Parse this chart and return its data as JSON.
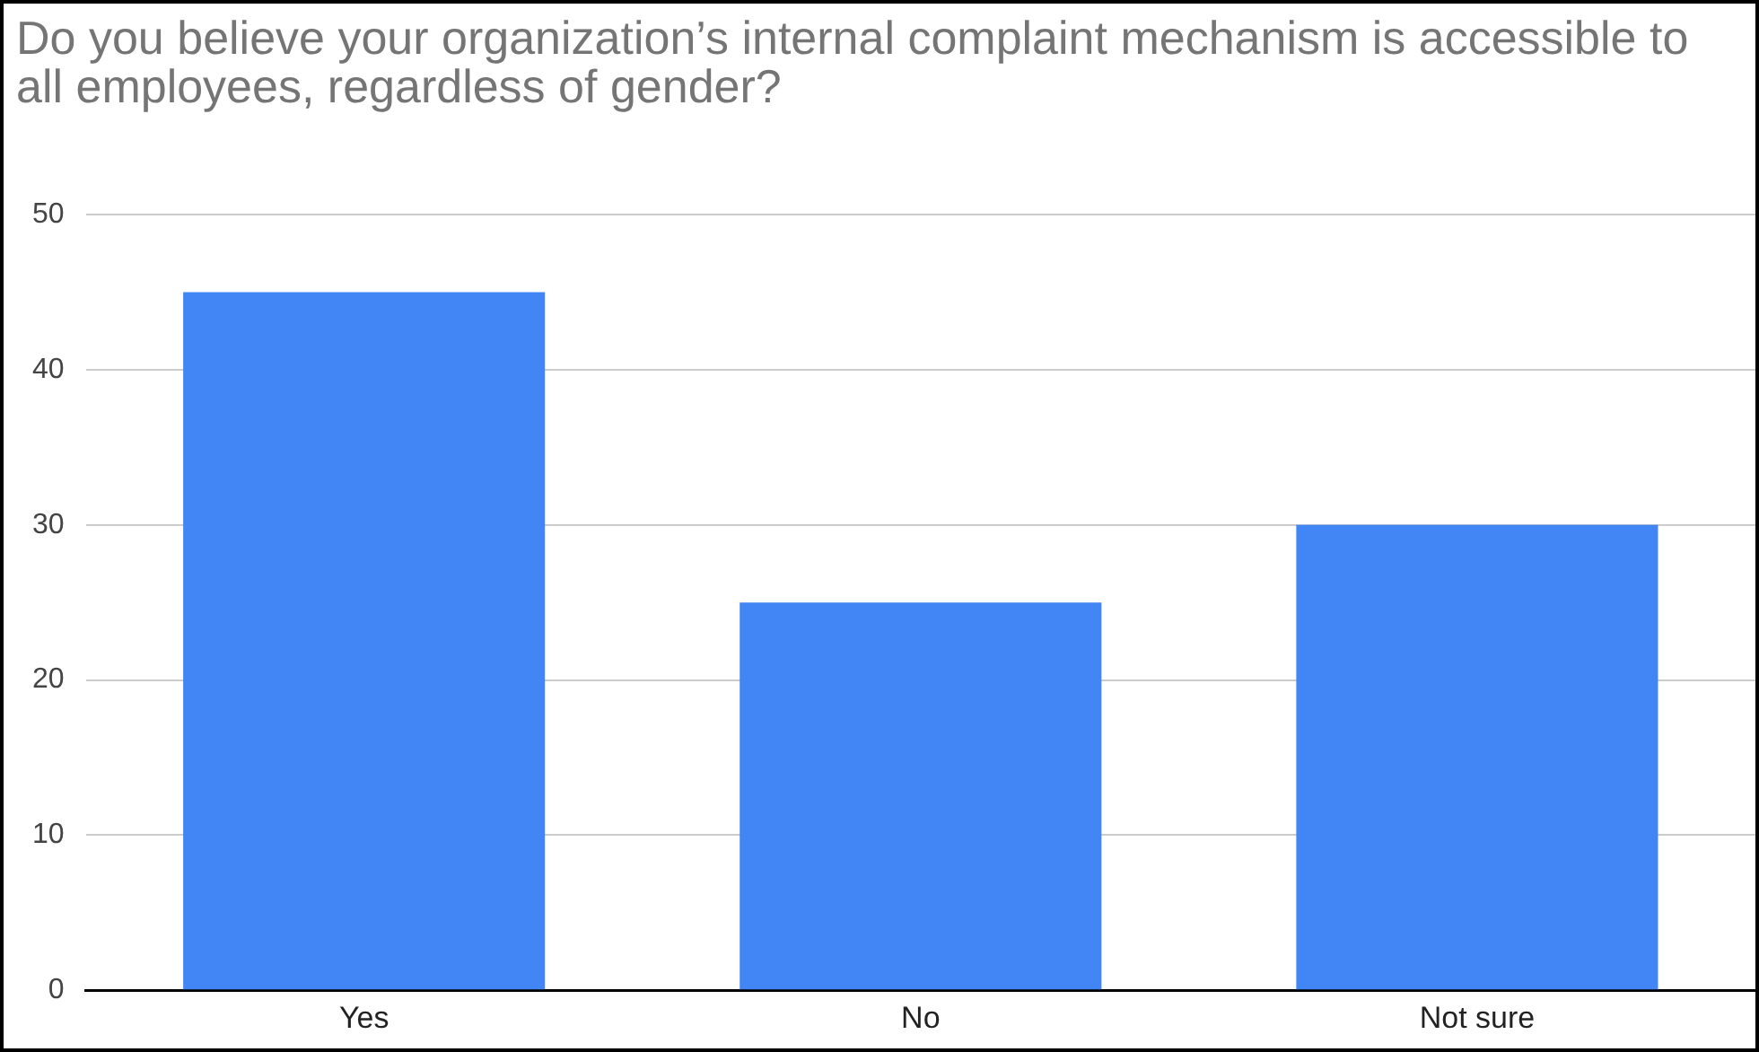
{
  "chart_data": {
    "type": "bar",
    "title": "Do you believe your organization’s internal complaint mechanism is accessible to all employees, regardless of gender?",
    "categories": [
      "Yes",
      "No",
      "Not sure"
    ],
    "values": [
      45,
      25,
      30
    ],
    "color": "#4285f4",
    "ylim": [
      0,
      50
    ],
    "yticks": [
      0,
      10,
      20,
      30,
      40,
      50
    ],
    "grid": "y"
  }
}
